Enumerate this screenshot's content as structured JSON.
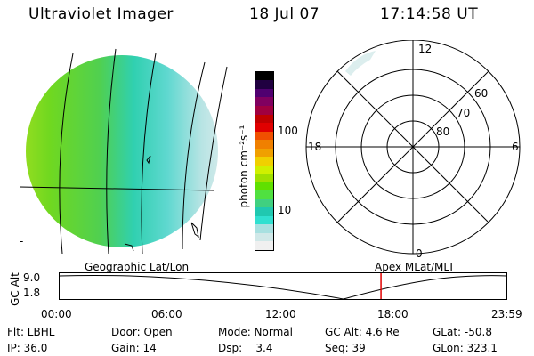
{
  "header": {
    "instrument": "Ultraviolet Imager",
    "date": "18 Jul 07",
    "time": "17:14:58 UT"
  },
  "colorbar": {
    "label": "photon cm⁻²s⁻¹",
    "ticks": [
      "100",
      "10"
    ],
    "colors": [
      "#f0f0f0",
      "#d0e8e8",
      "#a8e0e0",
      "#30e0d0",
      "#20c8b0",
      "#40d080",
      "#50e040",
      "#60e000",
      "#a0e000",
      "#d0f000",
      "#f0d000",
      "#f0a000",
      "#f08000",
      "#f05000",
      "#e00000",
      "#c00000",
      "#a00040",
      "#800060",
      "#500070",
      "#200040",
      "#000000"
    ]
  },
  "polar": {
    "hour_labels": [
      "12",
      "18",
      "6",
      "0"
    ],
    "lat_labels": [
      "60",
      "70",
      "80"
    ]
  },
  "map_labels": {
    "left": "Geographic Lat/Lon",
    "right": "Apex MLat/MLT"
  },
  "timeline": {
    "axis_label": "GC Alt",
    "y_top": "9.0",
    "y_bottom": "1.8",
    "ticks": [
      "00:00",
      "06:00",
      "12:00",
      "18:00",
      "23:59"
    ],
    "current_hour": 17.25,
    "marker_color": "#e00000"
  },
  "info": [
    [
      {
        "label": "Flt: LBHL"
      },
      {
        "label": "Door: Open"
      },
      {
        "label": "Mode: Normal"
      },
      {
        "label": "GC Alt: 4.6 Re"
      },
      {
        "label": "GLat: -50.8"
      }
    ],
    [
      {
        "label": "IP: 36.0"
      },
      {
        "label": "Gain: 14"
      },
      {
        "label": "Dsp:    3.4"
      },
      {
        "label": "Seq: 39"
      },
      {
        "label": "GLon: 323.1"
      }
    ]
  ]
}
